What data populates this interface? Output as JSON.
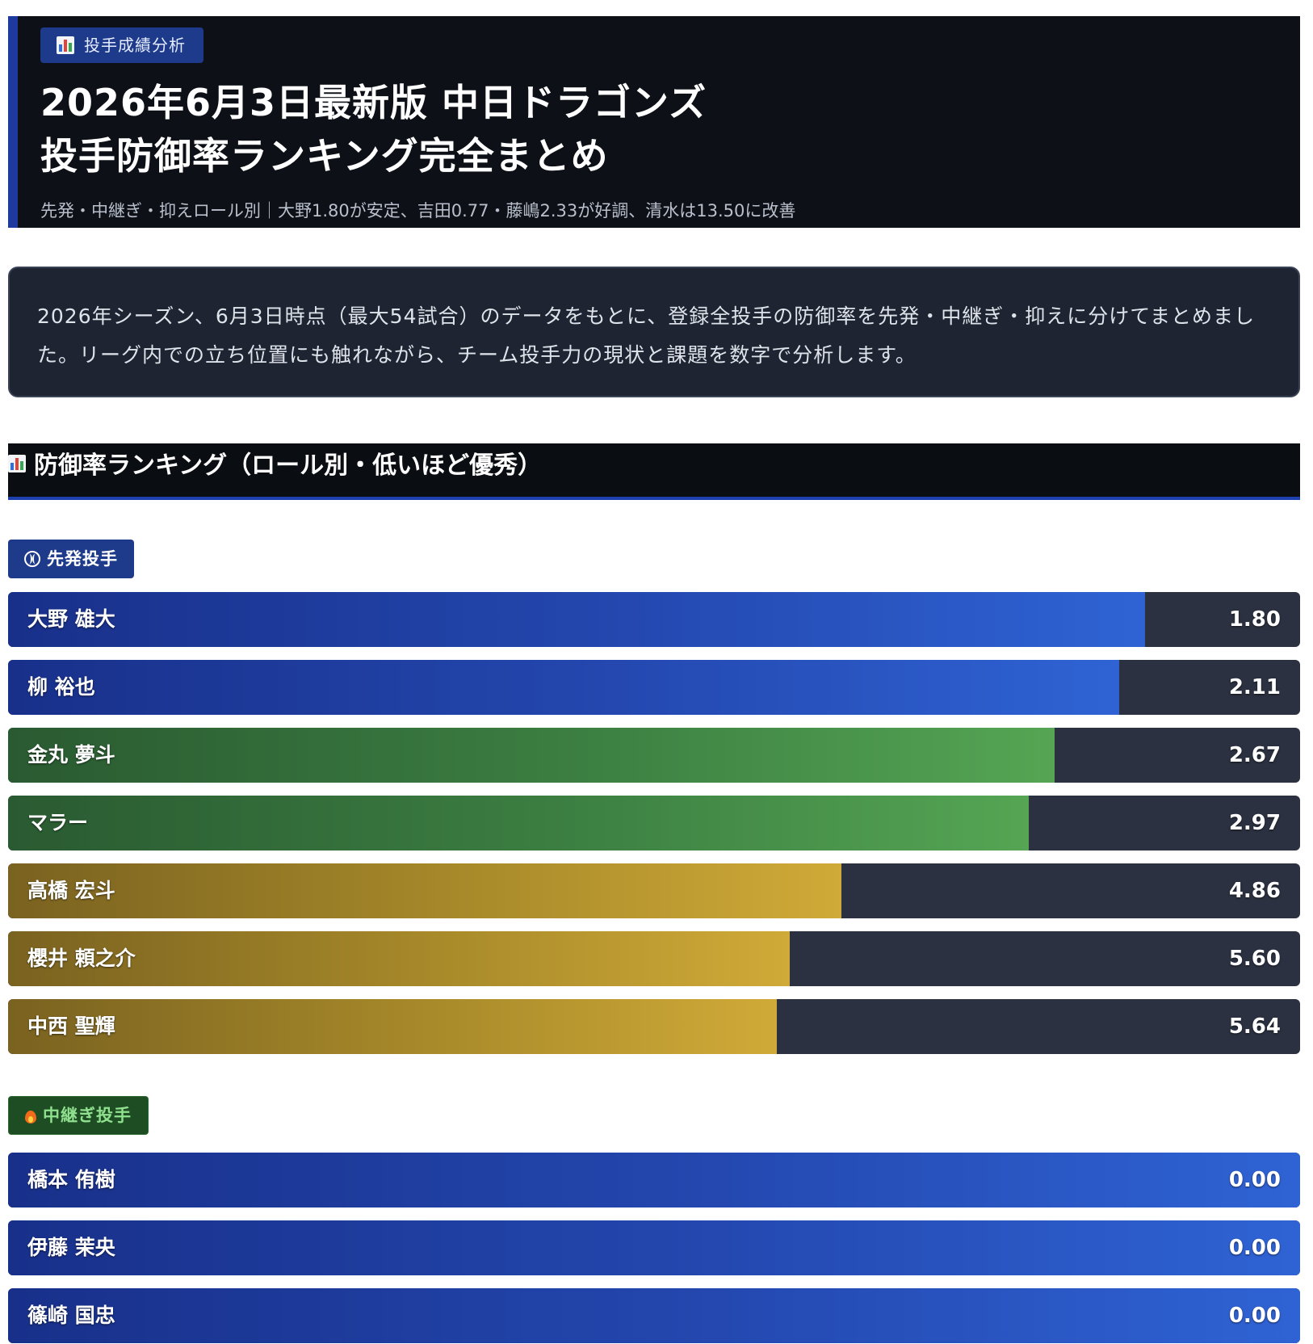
{
  "header": {
    "tag_label": "投手成績分析",
    "title_line1": "2026年6月3日最新版 中日ドラゴンズ",
    "title_line2": "投手防御率ランキング完全まとめ",
    "subtitle": "先発・中継ぎ・抑えロール別｜大野1.80が安定、吉田0.77・藤嶋2.33が好調、清水は13.50に改善"
  },
  "intro": {
    "text": "2026年シーズン、6月3日時点（最大54試合）のデータをもとに、登録全投手の防御率を先発・中継ぎ・抑えに分けてまとめました。リーグ内での立ち位置にも触れながら、チーム投手力の現状と課題を数字で分析します。"
  },
  "section": {
    "heading": "防御率ランキング（ロール別・低いほど優秀）"
  },
  "icons": {
    "chart": "bar-chart-icon",
    "starter": "baseball-icon",
    "reliever": "fire-icon"
  },
  "colors": {
    "good": "#2f63d4",
    "mid": "#55a554",
    "poor": "#d0aa38",
    "track": "#2b3140"
  },
  "chart_data": [
    {
      "type": "bar",
      "orientation": "horizontal",
      "title": "先発投手",
      "categories": [
        "大野 雄大",
        "柳 裕也",
        "金丸 夢斗",
        "マラー",
        "高橋 宏斗",
        "櫻井 頼之介",
        "中西 聖輝"
      ],
      "values": [
        1.8,
        2.11,
        2.67,
        2.97,
        4.86,
        5.6,
        5.64
      ],
      "value_labels": [
        "1.80",
        "2.11",
        "2.67",
        "2.97",
        "4.86",
        "5.60",
        "5.64"
      ],
      "tiers": [
        "good",
        "good",
        "mid",
        "mid",
        "poor",
        "poor",
        "poor"
      ],
      "fill": [
        0.88,
        0.86,
        0.81,
        0.79,
        0.645,
        0.605,
        0.595
      ]
    },
    {
      "type": "bar",
      "orientation": "horizontal",
      "title": "中継ぎ投手",
      "categories": [
        "橋本 侑樹",
        "伊藤 茉央",
        "篠崎 国忠"
      ],
      "values": [
        0.0,
        0.0,
        0.0
      ],
      "value_labels": [
        "0.00",
        "0.00",
        "0.00"
      ],
      "tiers": [
        "good",
        "good",
        "good"
      ],
      "fill": [
        1.0,
        1.0,
        1.0
      ]
    }
  ]
}
